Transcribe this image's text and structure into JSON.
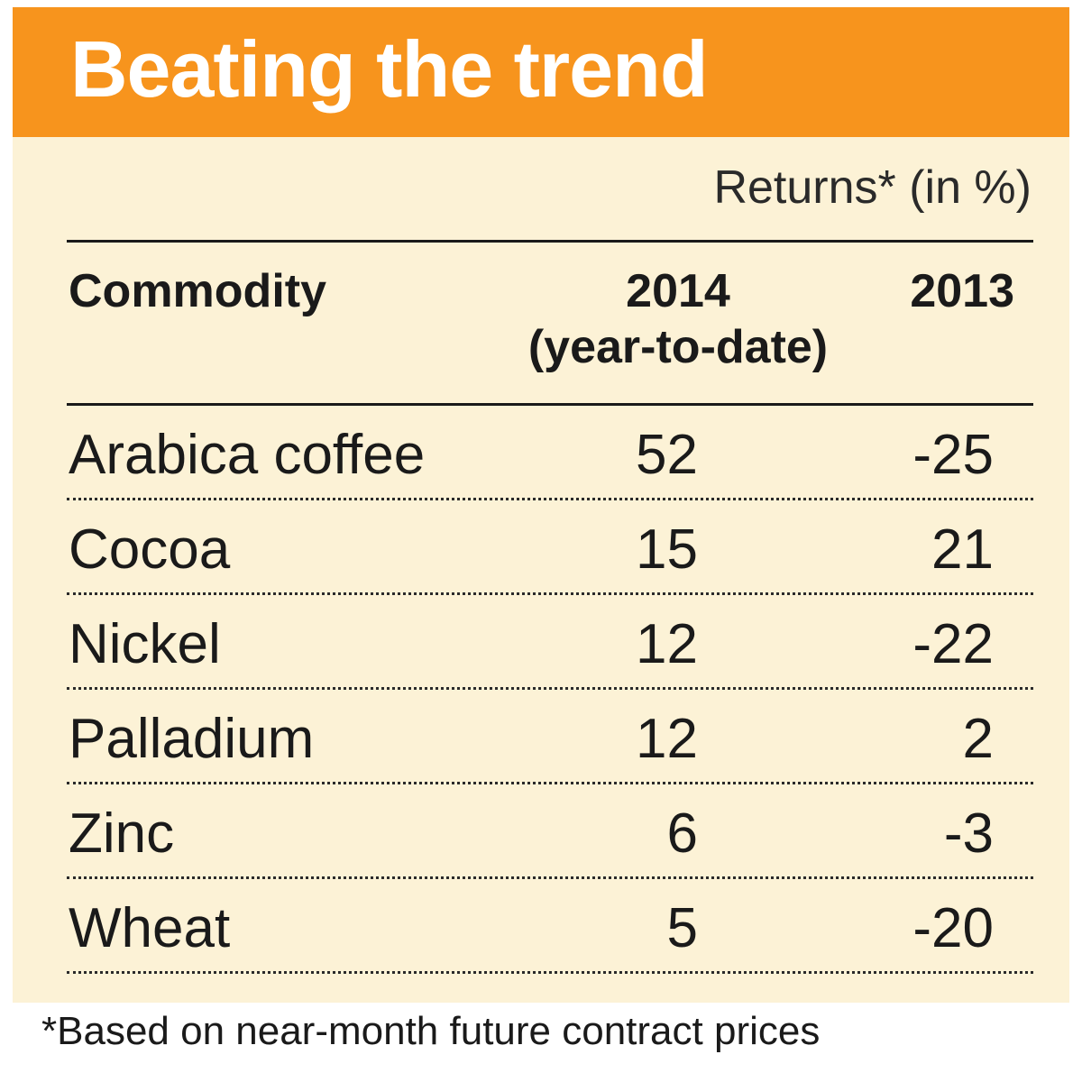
{
  "title": "Beating the trend",
  "subtitle": "Returns* (in %)",
  "footnote": "*Based on near-month future contract prices",
  "colors": {
    "title_bar": "#f7941d",
    "panel_background": "#fcf2d6",
    "title_text": "#ffffff",
    "body_text": "#1a1a1a"
  },
  "chart_data": {
    "type": "table",
    "columns": [
      {
        "label": "Commodity",
        "sublabel": ""
      },
      {
        "label": "2014",
        "sublabel": "(year-to-date)"
      },
      {
        "label": "2013",
        "sublabel": ""
      }
    ],
    "rows": [
      {
        "commodity": "Arabica coffee",
        "y2014": "52",
        "y2013": "-25"
      },
      {
        "commodity": "Cocoa",
        "y2014": "15",
        "y2013": "21"
      },
      {
        "commodity": "Nickel",
        "y2014": "12",
        "y2013": "-22"
      },
      {
        "commodity": "Palladium",
        "y2014": "12",
        "y2013": "2"
      },
      {
        "commodity": "Zinc",
        "y2014": "6",
        "y2013": "-3"
      },
      {
        "commodity": "Wheat",
        "y2014": "5",
        "y2013": "-20"
      }
    ]
  }
}
